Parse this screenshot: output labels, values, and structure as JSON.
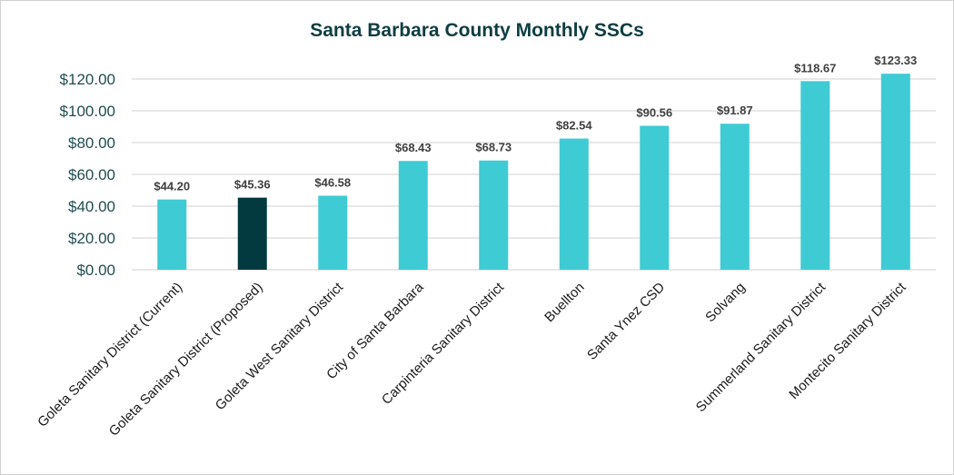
{
  "chart_data": {
    "type": "bar",
    "title": "Santa Barbara County Monthly SSCs",
    "xlabel": "",
    "ylabel": "",
    "ylim": [
      0,
      120
    ],
    "y_ticks": [
      "$0.00",
      "$20.00",
      "$40.00",
      "$60.00",
      "$80.00",
      "$100.00",
      "$120.00"
    ],
    "y_tick_values": [
      0,
      20,
      40,
      60,
      80,
      100,
      120
    ],
    "grid": true,
    "categories": [
      "Goleta Sanitary District (Current)",
      "Goleta Sanitary District (Proposed)",
      "Goleta West Sanitary District",
      "City of Santa Barbara",
      "Carpinteria Sanitary District",
      "Buellton",
      "Santa Ynez CSD",
      "Solvang",
      "Summerland Sanitary District",
      "Montecito Sanitary District"
    ],
    "values": [
      44.2,
      45.36,
      46.58,
      68.43,
      68.73,
      82.54,
      90.56,
      91.87,
      118.67,
      123.33
    ],
    "data_labels": [
      "$44.20",
      "$45.36",
      "$46.58",
      "$68.43",
      "$68.73",
      "$82.54",
      "$90.56",
      "$91.87",
      "$118.67",
      "$123.33"
    ],
    "colors": {
      "default": "#3ecbd4",
      "highlight": "#023a40",
      "title": "#0e3d43",
      "grid": "#d9d9d9"
    },
    "highlight_index": 1
  }
}
